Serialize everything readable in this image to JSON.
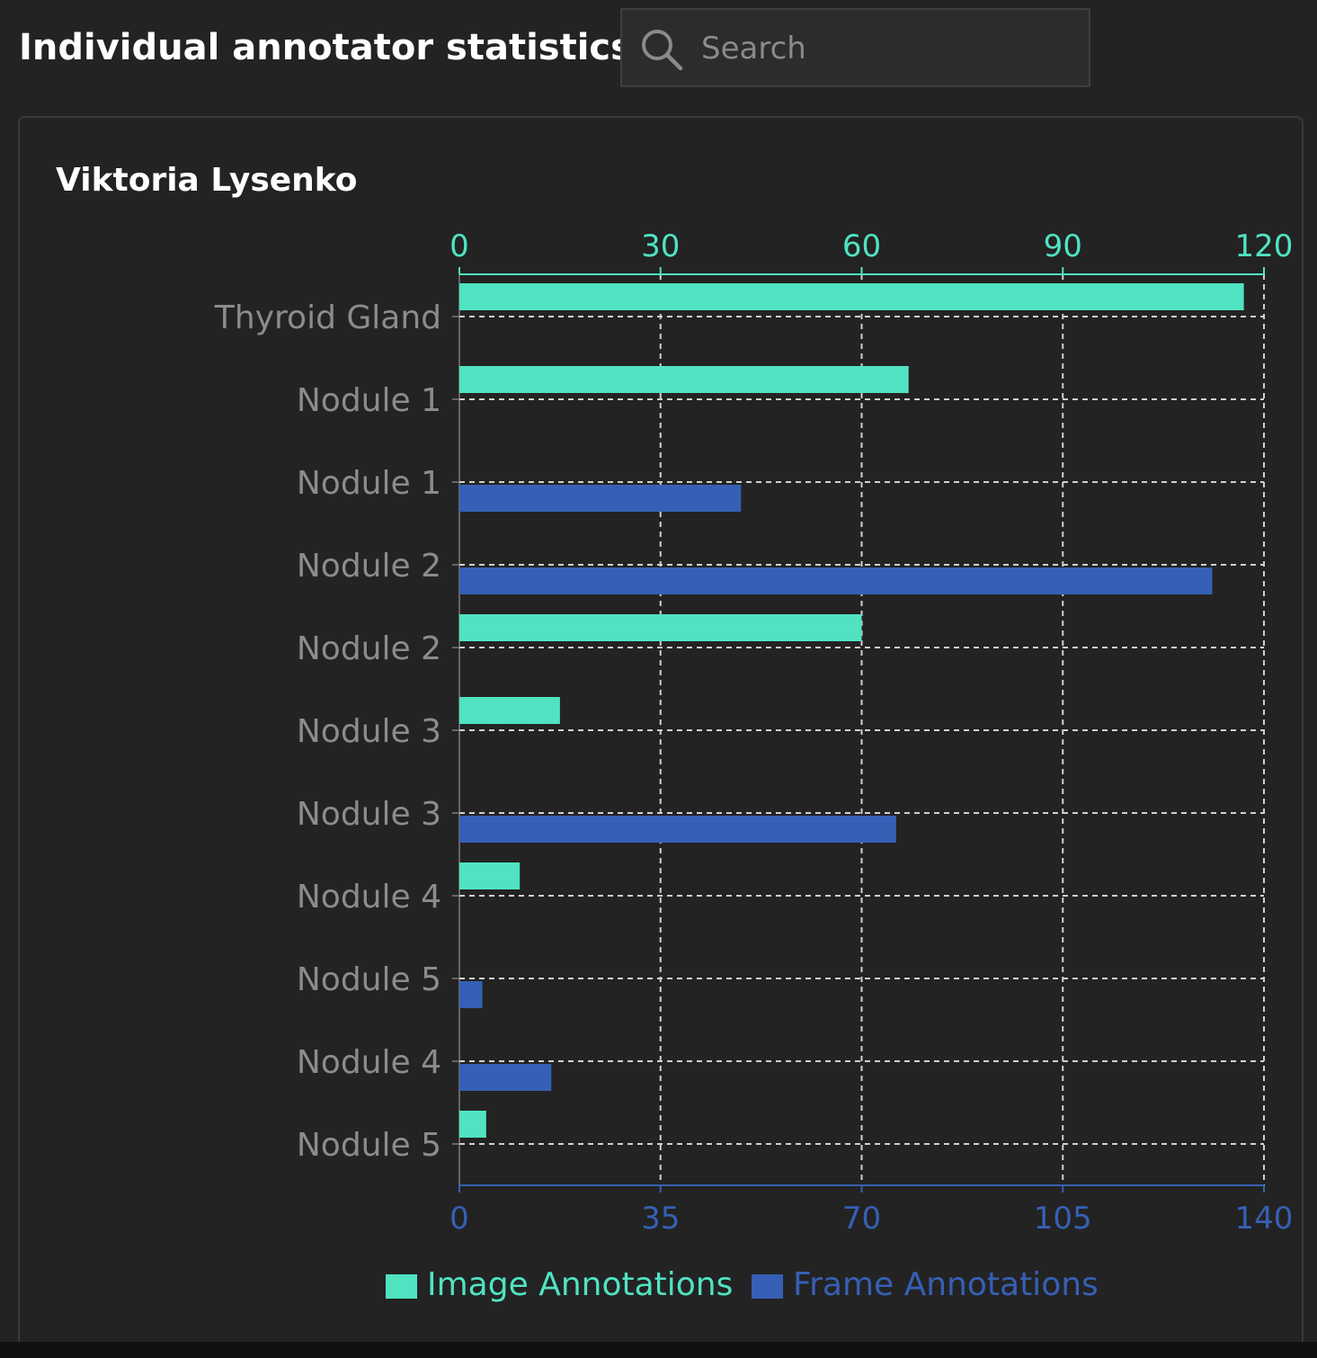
{
  "header": {
    "title": "Individual annotator statistics"
  },
  "search": {
    "placeholder": "Search",
    "value": ""
  },
  "icons": {
    "search": "search-icon"
  },
  "card": {
    "annotator_name": "Viktoria Lysenko"
  },
  "colors": {
    "background": "#232323",
    "image_annotations": "#50e3c2",
    "frame_annotations": "#3660b5",
    "category_label": "#8c8c8c",
    "grid": "#d0d0d0"
  },
  "chart_data": {
    "type": "bar",
    "orientation": "horizontal",
    "categories": [
      "Thyroid Gland",
      "Nodule 1",
      "Nodule 1",
      "Nodule 2",
      "Nodule 2",
      "Nodule 3",
      "Nodule 3",
      "Nodule 4",
      "Nodule 5",
      "Nodule 4",
      "Nodule 5"
    ],
    "series": [
      {
        "name": "Image Annotations",
        "axis": "top",
        "values": [
          117,
          67,
          null,
          null,
          60,
          15,
          null,
          9,
          null,
          null,
          4
        ]
      },
      {
        "name": "Frame Annotations",
        "axis": "bottom",
        "values": [
          null,
          null,
          49,
          131,
          null,
          null,
          76,
          null,
          4,
          16,
          null
        ]
      }
    ],
    "top_axis": {
      "range": [
        0,
        120
      ],
      "ticks": [
        "0",
        "30",
        "60",
        "90",
        "120"
      ]
    },
    "bottom_axis": {
      "range": [
        0,
        140
      ],
      "ticks": [
        "0",
        "35",
        "70",
        "105",
        "140"
      ]
    },
    "grid": true,
    "legend_position": "bottom"
  }
}
